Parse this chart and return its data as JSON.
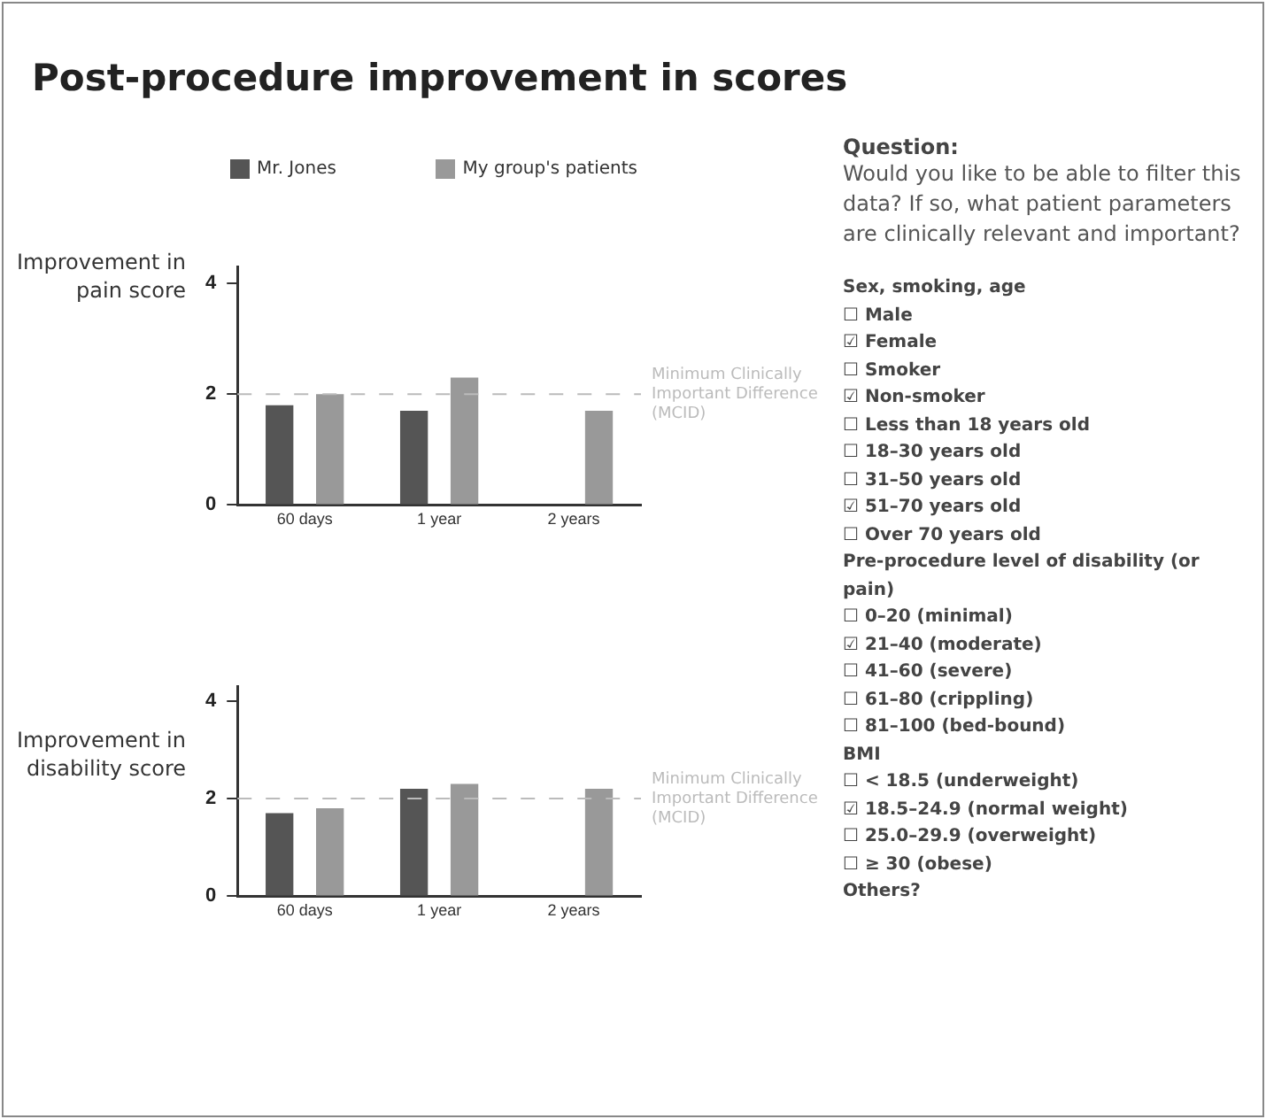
{
  "chart_data": [
    {
      "type": "bar",
      "title": "Post-procedure improvement in scores",
      "ylabel": "Improvement in pain score",
      "categories": [
        "60 days",
        "1 year",
        "2 years"
      ],
      "series": [
        {
          "name": "Mr. Jones",
          "color": "#555555",
          "values": [
            1.8,
            1.7,
            null
          ]
        },
        {
          "name": "My group's patients",
          "color": "#999999",
          "values": [
            2.0,
            2.3,
            1.7
          ]
        }
      ],
      "ylim": [
        0,
        4.3
      ],
      "yticks": [
        0,
        2,
        4
      ],
      "grid": false,
      "legend": "top",
      "ref_lines": [
        {
          "axis": "y",
          "value": 2,
          "label": "Minimum Clinically Important Difference (MCID)",
          "color": "#bbbbbb",
          "line_style": "dashed"
        }
      ]
    },
    {
      "type": "bar",
      "ylabel": "Improvement in disability score",
      "categories": [
        "60 days",
        "1 year",
        "2 years"
      ],
      "series": [
        {
          "color": "#555555",
          "values": [
            1.7,
            2.2,
            null
          ]
        },
        {
          "color": "#999999",
          "values": [
            1.8,
            2.3,
            2.2
          ]
        }
      ],
      "ylim": [
        0,
        4.3
      ],
      "yticks": [
        0,
        2,
        4
      ],
      "grid": false,
      "legend": false,
      "ref_lines": [
        {
          "axis": "y",
          "value": 2,
          "label": "Minimum Clinically Important Difference (MCID)",
          "color": "#bbbbbb",
          "line_style": "dashed"
        }
      ]
    },
    {
      "type": "other",
      "title": "Question:",
      "subtitle": "Would you like to be able to filter this data? If so, what patient parameters are clinically relevant and important?",
      "annotations": [
        "Sex, smoking, age",
        "☐ Male",
        "☑ Female",
        "☐ Smoker",
        "☑ Non-smoker",
        "☐ Less than 18 years old",
        "☐ 18–30 years old",
        "☐ 31–50 years old",
        "☑ 51–70 years old",
        "☐ Over 70 years old",
        "Pre-procedure level of disability (or pain)",
        "☐ 0–20 (minimal)",
        "☑ 21–40 (moderate)",
        "☐ 41–60 (severe)",
        "☐ 61–80 (crippling)",
        "☐ 81–100 (bed-bound)",
        "BMI",
        "☐ < 18.5 (underweight)",
        "☑ 18.5–24.9 (normal weight)",
        "☐ 25.0–29.9 (overweight)",
        "☐ ≥ 30 (obese)",
        "Others?"
      ]
    }
  ]
}
